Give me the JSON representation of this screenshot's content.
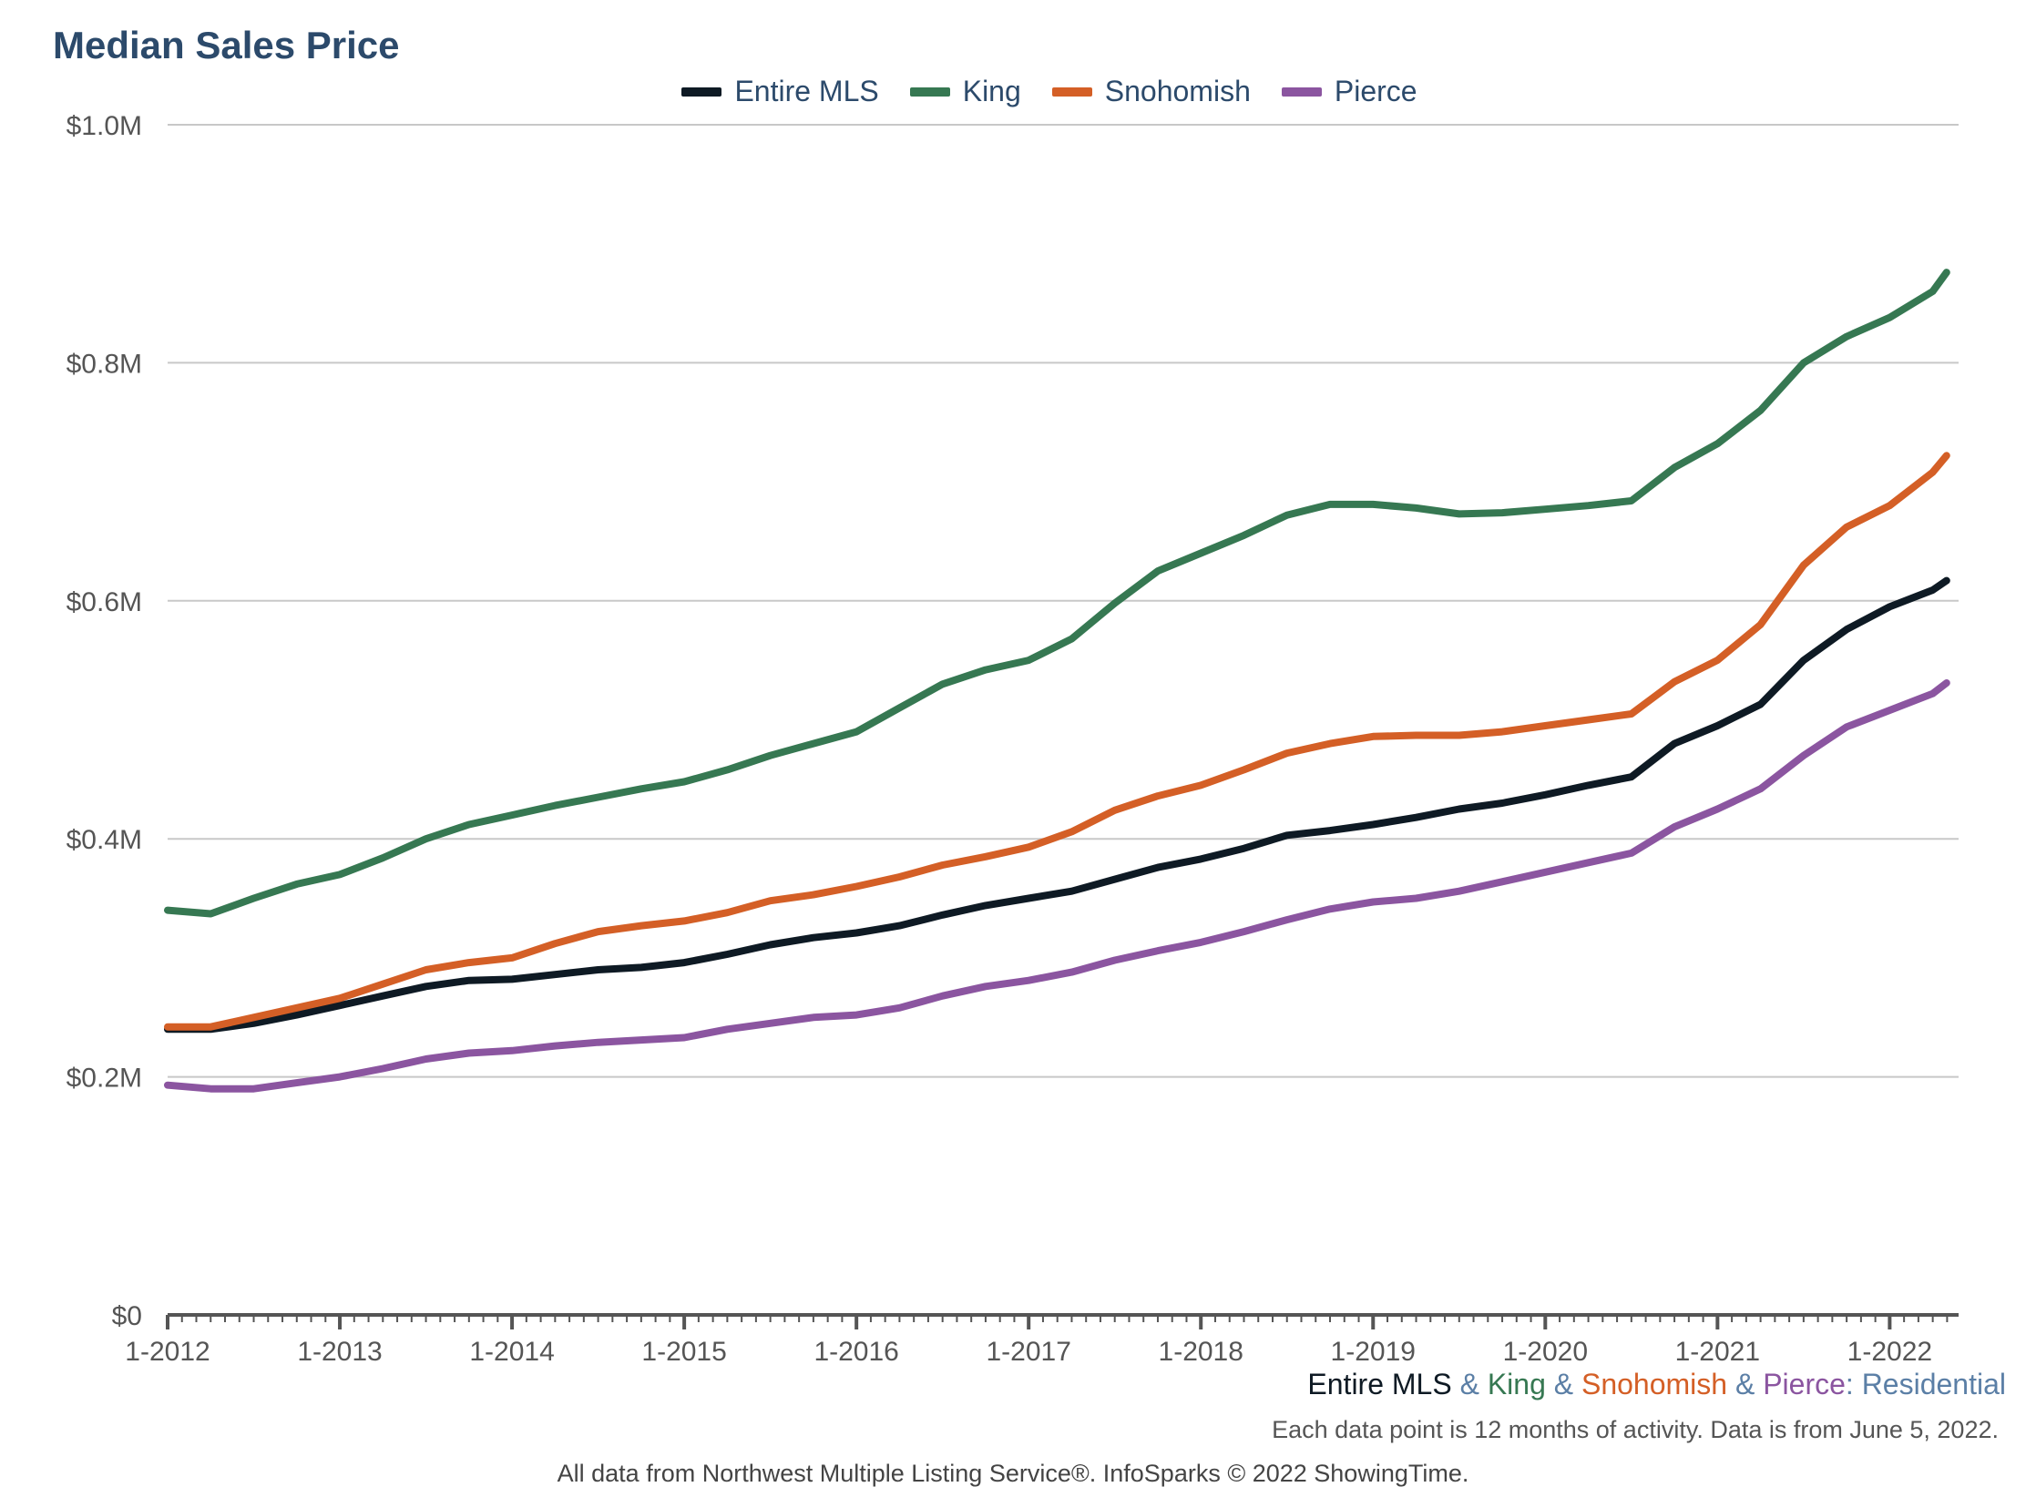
{
  "chart_data": {
    "type": "line",
    "title": "Median Sales Price",
    "xlabel": "",
    "ylabel": "",
    "x_ticks": [
      "1-2012",
      "1-2013",
      "1-2014",
      "1-2015",
      "1-2016",
      "1-2017",
      "1-2018",
      "1-2019",
      "1-2020",
      "1-2021",
      "1-2022"
    ],
    "y_ticks": [
      "$0",
      "$0.2M",
      "$0.4M",
      "$0.6M",
      "$0.8M",
      "$1.0M"
    ],
    "ylim": [
      0,
      1000000
    ],
    "xlim": [
      2012.0,
      2022.4
    ],
    "grid": true,
    "legend_position": "top-center",
    "series": [
      {
        "name": "Entire MLS",
        "color": "#0e1a24",
        "x": [
          2012.0,
          2012.25,
          2012.5,
          2012.75,
          2013.0,
          2013.25,
          2013.5,
          2013.75,
          2014.0,
          2014.25,
          2014.5,
          2014.75,
          2015.0,
          2015.25,
          2015.5,
          2015.75,
          2016.0,
          2016.25,
          2016.5,
          2016.75,
          2017.0,
          2017.25,
          2017.5,
          2017.75,
          2018.0,
          2018.25,
          2018.5,
          2018.75,
          2019.0,
          2019.25,
          2019.5,
          2019.75,
          2020.0,
          2020.25,
          2020.5,
          2020.75,
          2021.0,
          2021.25,
          2021.5,
          2021.75,
          2022.0,
          2022.25,
          2022.33
        ],
        "values": [
          240000,
          240000,
          245000,
          252000,
          260000,
          268000,
          276000,
          281000,
          282000,
          286000,
          290000,
          292000,
          296000,
          303000,
          311000,
          317000,
          321000,
          327000,
          336000,
          344000,
          350000,
          356000,
          366000,
          376000,
          383000,
          392000,
          403000,
          407000,
          412000,
          418000,
          425000,
          430000,
          437000,
          445000,
          452000,
          480000,
          495000,
          513000,
          550000,
          576000,
          595000,
          609000,
          617000
        ]
      },
      {
        "name": "King",
        "color": "#367852",
        "x": [
          2012.0,
          2012.25,
          2012.5,
          2012.75,
          2013.0,
          2013.25,
          2013.5,
          2013.75,
          2014.0,
          2014.25,
          2014.5,
          2014.75,
          2015.0,
          2015.25,
          2015.5,
          2015.75,
          2016.0,
          2016.25,
          2016.5,
          2016.75,
          2017.0,
          2017.25,
          2017.5,
          2017.75,
          2018.0,
          2018.25,
          2018.5,
          2018.75,
          2019.0,
          2019.25,
          2019.5,
          2019.75,
          2020.0,
          2020.25,
          2020.5,
          2020.75,
          2021.0,
          2021.25,
          2021.5,
          2021.75,
          2022.0,
          2022.25,
          2022.33
        ],
        "values": [
          340000,
          337000,
          350000,
          362000,
          370000,
          384000,
          400000,
          412000,
          420000,
          428000,
          435000,
          442000,
          448000,
          458000,
          470000,
          480000,
          490000,
          510000,
          530000,
          542000,
          550000,
          568000,
          598000,
          625000,
          640000,
          655000,
          672000,
          681000,
          681000,
          678000,
          673000,
          674000,
          677000,
          680000,
          684000,
          712000,
          732000,
          760000,
          800000,
          822000,
          838000,
          860000,
          876000
        ]
      },
      {
        "name": "Snohomish",
        "color": "#d45f26",
        "x": [
          2012.0,
          2012.25,
          2012.5,
          2012.75,
          2013.0,
          2013.25,
          2013.5,
          2013.75,
          2014.0,
          2014.25,
          2014.5,
          2014.75,
          2015.0,
          2015.25,
          2015.5,
          2015.75,
          2016.0,
          2016.25,
          2016.5,
          2016.75,
          2017.0,
          2017.25,
          2017.5,
          2017.75,
          2018.0,
          2018.25,
          2018.5,
          2018.75,
          2019.0,
          2019.25,
          2019.5,
          2019.75,
          2020.0,
          2020.25,
          2020.5,
          2020.75,
          2021.0,
          2021.25,
          2021.5,
          2021.75,
          2022.0,
          2022.25,
          2022.33
        ],
        "values": [
          242000,
          242000,
          250000,
          258000,
          266000,
          278000,
          290000,
          296000,
          300000,
          312000,
          322000,
          327000,
          331000,
          338000,
          348000,
          353000,
          360000,
          368000,
          378000,
          385000,
          393000,
          406000,
          424000,
          436000,
          445000,
          458000,
          472000,
          480000,
          486000,
          487000,
          487000,
          490000,
          495000,
          500000,
          505000,
          532000,
          550000,
          580000,
          630000,
          662000,
          680000,
          708000,
          722000
        ]
      },
      {
        "name": "Pierce",
        "color": "#8b55a0",
        "x": [
          2012.0,
          2012.25,
          2012.5,
          2012.75,
          2013.0,
          2013.25,
          2013.5,
          2013.75,
          2014.0,
          2014.25,
          2014.5,
          2014.75,
          2015.0,
          2015.25,
          2015.5,
          2015.75,
          2016.0,
          2016.25,
          2016.5,
          2016.75,
          2017.0,
          2017.25,
          2017.5,
          2017.75,
          2018.0,
          2018.25,
          2018.5,
          2018.75,
          2019.0,
          2019.25,
          2019.5,
          2019.75,
          2020.0,
          2020.25,
          2020.5,
          2020.75,
          2021.0,
          2021.25,
          2021.5,
          2021.75,
          2022.0,
          2022.25,
          2022.33
        ],
        "values": [
          193000,
          190000,
          190000,
          195000,
          200000,
          207000,
          215000,
          220000,
          222000,
          226000,
          229000,
          231000,
          233000,
          240000,
          245000,
          250000,
          252000,
          258000,
          268000,
          276000,
          281000,
          288000,
          298000,
          306000,
          313000,
          322000,
          332000,
          341000,
          347000,
          350000,
          356000,
          364000,
          372000,
          380000,
          388000,
          410000,
          425000,
          442000,
          470000,
          494000,
          508000,
          522000,
          531000
        ]
      }
    ]
  },
  "footer": {
    "series_parts": [
      "Entire MLS",
      " & ",
      "King",
      " & ",
      "Snohomish",
      " & ",
      "Pierce",
      ": Residential"
    ],
    "note": "Each data point is 12 months of activity. Data is from June 5, 2022.",
    "credit": "All data from Northwest Multiple Listing Service®. InfoSparks © 2022 ShowingTime."
  },
  "colors": {
    "title": "#2c4a6b",
    "grid": "#c8c8c8",
    "axis": "#555555",
    "connector": "#5b7fa6"
  }
}
